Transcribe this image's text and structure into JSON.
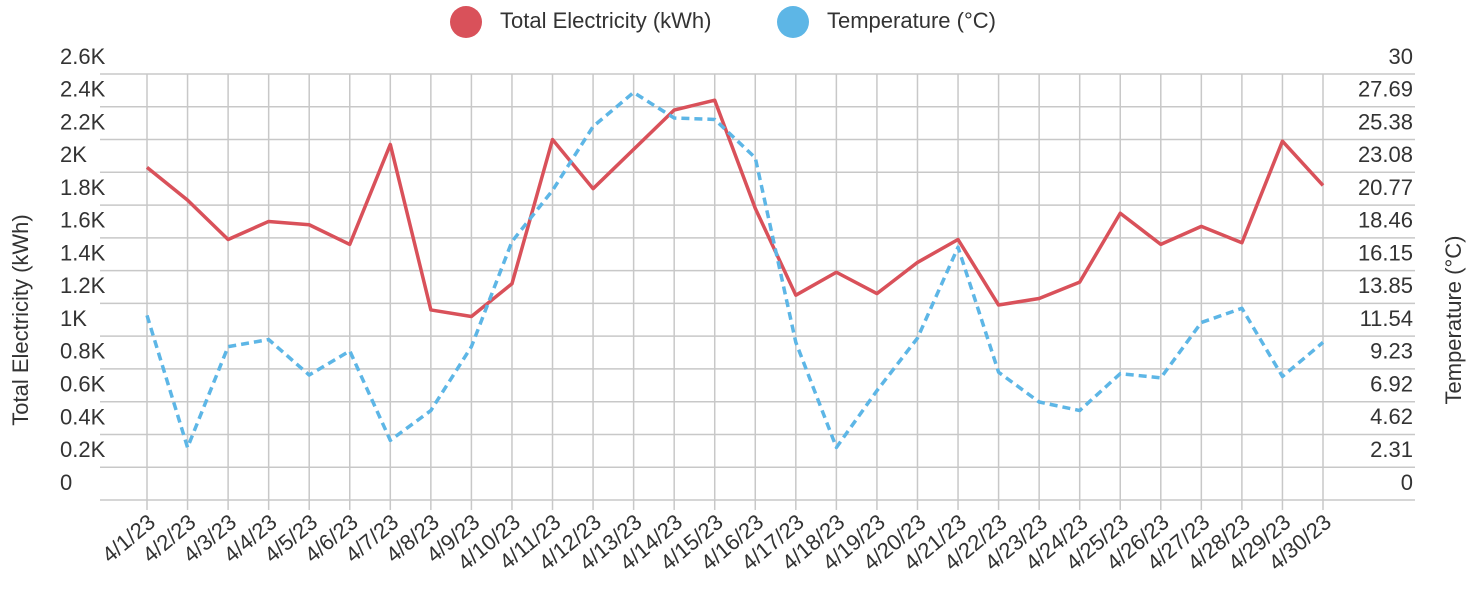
{
  "chart_data": {
    "type": "line",
    "categories": [
      "4/1/23",
      "4/2/23",
      "4/3/23",
      "4/4/23",
      "4/5/23",
      "4/6/23",
      "4/7/23",
      "4/8/23",
      "4/9/23",
      "4/10/23",
      "4/11/23",
      "4/12/23",
      "4/13/23",
      "4/14/23",
      "4/15/23",
      "4/16/23",
      "4/17/23",
      "4/18/23",
      "4/19/23",
      "4/20/23",
      "4/21/23",
      "4/22/23",
      "4/23/23",
      "4/24/23",
      "4/25/23",
      "4/26/23",
      "4/27/23",
      "4/28/23",
      "4/29/23",
      "4/30/23"
    ],
    "series": [
      {
        "name": "Total Electricity (kWh)",
        "color": "#d9515a",
        "values": [
          2030,
          1830,
          1590,
          1700,
          1680,
          1560,
          2170,
          1160,
          1120,
          1320,
          2200,
          1900,
          2140,
          2380,
          2440,
          1780,
          1250,
          1390,
          1260,
          1450,
          1590,
          1190,
          1230,
          1330,
          1750,
          1560,
          1670,
          1570,
          2190,
          1920
        ]
      },
      {
        "name": "Temperature (°C)",
        "color": "#5db6e6",
        "axis": "y2",
        "dashed": true,
        "values": [
          13.0,
          3.7,
          10.8,
          11.3,
          8.8,
          10.5,
          4.2,
          6.3,
          10.8,
          18.2,
          21.8,
          26.3,
          28.7,
          26.9,
          26.8,
          24.1,
          11.1,
          3.7,
          7.7,
          11.4,
          17.8,
          9.0,
          6.9,
          6.3,
          8.9,
          8.6,
          12.5,
          13.5,
          8.7,
          11.1
        ]
      }
    ],
    "y_label": "Total Electricity (kWh)",
    "y2_label": "Temperature (°C)",
    "ylim": [
      0,
      2600
    ],
    "yticks": [
      0,
      {
        "value": 200,
        "label": "0.2K"
      },
      {
        "value": 400,
        "label": "0.4K"
      },
      {
        "value": 600,
        "label": "0.6K"
      },
      {
        "value": 800,
        "label": "0.8K"
      },
      {
        "value": 1000,
        "label": "1K"
      },
      {
        "value": 1200,
        "label": "1.2K"
      },
      {
        "value": 1400,
        "label": "1.4K"
      },
      {
        "value": 1600,
        "label": "1.6K"
      },
      {
        "value": 1800,
        "label": "1.8K"
      },
      {
        "value": 2000,
        "label": "2K"
      },
      {
        "value": 2200,
        "label": "2.2K"
      },
      {
        "value": 2400,
        "label": "2.4K"
      },
      {
        "value": 2600,
        "label": "2.6K"
      }
    ],
    "y2lim": [
      0,
      30
    ],
    "y2ticks": [
      0,
      2.31,
      4.62,
      6.92,
      9.23,
      11.54,
      13.85,
      16.15,
      18.46,
      20.77,
      23.08,
      25.38,
      27.69,
      30
    ],
    "grid": true,
    "legend": "top"
  }
}
